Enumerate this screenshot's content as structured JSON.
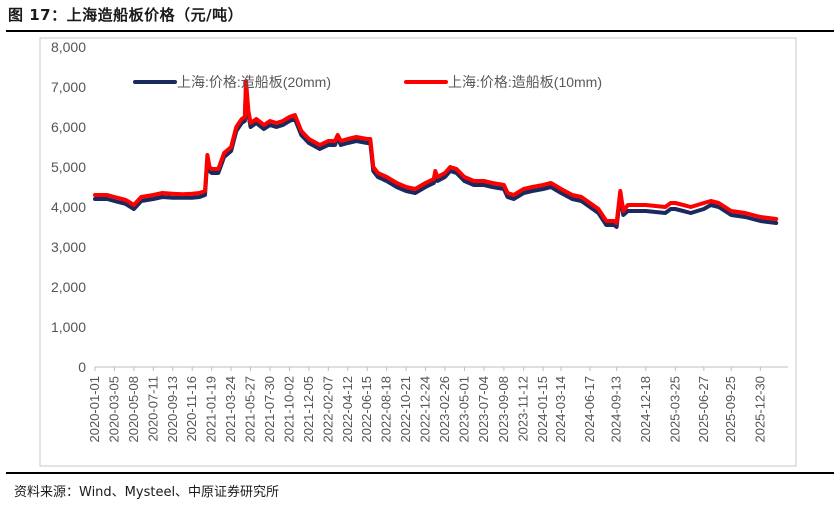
{
  "figure": {
    "title": "图 17：上海造船板价格（元/吨）",
    "source": "资料来源：Wind、Mysteel、中原证券研究所"
  },
  "chart_data": {
    "type": "line",
    "ylim": [
      0,
      8000
    ],
    "yticks": [
      0,
      1000,
      2000,
      3000,
      4000,
      5000,
      6000,
      7000,
      8000
    ],
    "ytick_labels": [
      "0",
      "1,000",
      "2,000",
      "3,000",
      "4,000",
      "5,000",
      "6,000",
      "7,000",
      "8,000"
    ],
    "xlim": [
      "2020-01-01",
      "2026-03-31"
    ],
    "xticks": [
      "2020-01-01",
      "2020-03-05",
      "2020-05-08",
      "2020-07-11",
      "2020-09-13",
      "2020-11-16",
      "2021-01-19",
      "2021-03-24",
      "2021-05-27",
      "2021-07-30",
      "2021-10-02",
      "2021-12-05",
      "2022-02-07",
      "2022-04-12",
      "2022-06-15",
      "2022-08-18",
      "2022-10-21",
      "2022-12-24",
      "2023-02-26",
      "2023-05-01",
      "2023-07-04",
      "2023-09-08",
      "2023-11-12",
      "2024-01-15",
      "2024-03-14",
      "2024-06-17",
      "2024-09-13",
      "2024-12-18",
      "2025-03-25",
      "2025-06-27",
      "2025-09-25",
      "2025-12-30"
    ],
    "legend_position": "top",
    "grid": false,
    "colors": {
      "20mm": "#1a2a5e",
      "10mm": "#ff0000"
    },
    "series": [
      {
        "name": "上海:价格:造船板(20mm)",
        "points": [
          [
            "2020-01-01",
            4200
          ],
          [
            "2020-02-10",
            4200
          ],
          [
            "2020-03-05",
            4150
          ],
          [
            "2020-04-10",
            4080
          ],
          [
            "2020-05-08",
            3950
          ],
          [
            "2020-06-01",
            4150
          ],
          [
            "2020-07-11",
            4200
          ],
          [
            "2020-08-10",
            4250
          ],
          [
            "2020-09-13",
            4230
          ],
          [
            "2020-10-15",
            4230
          ],
          [
            "2020-11-16",
            4230
          ],
          [
            "2020-12-10",
            4250
          ],
          [
            "2020-12-28",
            4300
          ],
          [
            "2021-01-05",
            5200
          ],
          [
            "2021-01-12",
            4900
          ],
          [
            "2021-01-19",
            4850
          ],
          [
            "2021-02-10",
            4850
          ],
          [
            "2021-03-01",
            5250
          ],
          [
            "2021-03-24",
            5400
          ],
          [
            "2021-04-10",
            5900
          ],
          [
            "2021-04-28",
            6100
          ],
          [
            "2021-05-08",
            6150
          ],
          [
            "2021-05-12",
            7050
          ],
          [
            "2021-05-20",
            6300
          ],
          [
            "2021-05-27",
            6000
          ],
          [
            "2021-06-15",
            6100
          ],
          [
            "2021-07-10",
            5950
          ],
          [
            "2021-07-30",
            6050
          ],
          [
            "2021-08-20",
            6000
          ],
          [
            "2021-09-10",
            6050
          ],
          [
            "2021-10-02",
            6150
          ],
          [
            "2021-10-20",
            6200
          ],
          [
            "2021-11-10",
            5800
          ],
          [
            "2021-12-05",
            5600
          ],
          [
            "2022-01-10",
            5450
          ],
          [
            "2022-02-07",
            5550
          ],
          [
            "2022-03-01",
            5550
          ],
          [
            "2022-03-10",
            5750
          ],
          [
            "2022-03-20",
            5550
          ],
          [
            "2022-04-12",
            5600
          ],
          [
            "2022-05-10",
            5650
          ],
          [
            "2022-06-15",
            5600
          ],
          [
            "2022-06-25",
            5600
          ],
          [
            "2022-07-05",
            4900
          ],
          [
            "2022-07-20",
            4750
          ],
          [
            "2022-08-18",
            4650
          ],
          [
            "2022-09-20",
            4500
          ],
          [
            "2022-10-21",
            4400
          ],
          [
            "2022-11-20",
            4350
          ],
          [
            "2022-12-24",
            4500
          ],
          [
            "2023-01-20",
            4600
          ],
          [
            "2023-01-25",
            4800
          ],
          [
            "2023-02-01",
            4650
          ],
          [
            "2023-02-26",
            4750
          ],
          [
            "2023-03-15",
            4900
          ],
          [
            "2023-04-05",
            4850
          ],
          [
            "2023-05-01",
            4650
          ],
          [
            "2023-06-01",
            4550
          ],
          [
            "2023-07-04",
            4550
          ],
          [
            "2023-08-01",
            4500
          ],
          [
            "2023-09-08",
            4450
          ],
          [
            "2023-09-20",
            4250
          ],
          [
            "2023-10-10",
            4200
          ],
          [
            "2023-11-12",
            4350
          ],
          [
            "2023-12-10",
            4400
          ],
          [
            "2024-01-15",
            4450
          ],
          [
            "2024-02-10",
            4500
          ],
          [
            "2024-03-14",
            4350
          ],
          [
            "2024-04-20",
            4200
          ],
          [
            "2024-05-20",
            4150
          ],
          [
            "2024-06-17",
            4000
          ],
          [
            "2024-07-15",
            3850
          ],
          [
            "2024-08-10",
            3550
          ],
          [
            "2024-09-05",
            3550
          ],
          [
            "2024-09-13",
            3500
          ],
          [
            "2024-09-25",
            4300
          ],
          [
            "2024-10-05",
            3800
          ],
          [
            "2024-10-20",
            3900
          ],
          [
            "2024-12-18",
            3900
          ],
          [
            "2025-02-20",
            3850
          ],
          [
            "2025-03-10",
            3950
          ],
          [
            "2025-03-25",
            3950
          ],
          [
            "2025-04-20",
            3900
          ],
          [
            "2025-05-15",
            3850
          ],
          [
            "2025-06-27",
            3950
          ],
          [
            "2025-07-20",
            4050
          ],
          [
            "2025-08-15",
            4000
          ],
          [
            "2025-09-25",
            3800
          ],
          [
            "2025-11-10",
            3750
          ],
          [
            "2025-12-30",
            3650
          ],
          [
            "2026-02-20",
            3600
          ]
        ]
      },
      {
        "name": "上海:价格:造船板(10mm)",
        "points": [
          [
            "2020-01-01",
            4300
          ],
          [
            "2020-02-10",
            4300
          ],
          [
            "2020-03-05",
            4250
          ],
          [
            "2020-04-10",
            4180
          ],
          [
            "2020-05-08",
            4050
          ],
          [
            "2020-06-01",
            4250
          ],
          [
            "2020-07-11",
            4300
          ],
          [
            "2020-08-10",
            4350
          ],
          [
            "2020-09-13",
            4330
          ],
          [
            "2020-10-15",
            4320
          ],
          [
            "2020-11-16",
            4330
          ],
          [
            "2020-12-10",
            4350
          ],
          [
            "2020-12-28",
            4400
          ],
          [
            "2021-01-05",
            5300
          ],
          [
            "2021-01-12",
            5000
          ],
          [
            "2021-01-19",
            4950
          ],
          [
            "2021-02-10",
            4950
          ],
          [
            "2021-03-01",
            5350
          ],
          [
            "2021-03-24",
            5500
          ],
          [
            "2021-04-10",
            6000
          ],
          [
            "2021-04-28",
            6200
          ],
          [
            "2021-05-08",
            6250
          ],
          [
            "2021-05-12",
            7150
          ],
          [
            "2021-05-20",
            6400
          ],
          [
            "2021-05-27",
            6100
          ],
          [
            "2021-06-15",
            6200
          ],
          [
            "2021-07-10",
            6050
          ],
          [
            "2021-07-30",
            6150
          ],
          [
            "2021-08-20",
            6100
          ],
          [
            "2021-09-10",
            6150
          ],
          [
            "2021-10-02",
            6250
          ],
          [
            "2021-10-20",
            6300
          ],
          [
            "2021-11-10",
            5900
          ],
          [
            "2021-12-05",
            5700
          ],
          [
            "2022-01-10",
            5550
          ],
          [
            "2022-02-07",
            5650
          ],
          [
            "2022-03-01",
            5650
          ],
          [
            "2022-03-10",
            5800
          ],
          [
            "2022-03-20",
            5650
          ],
          [
            "2022-04-12",
            5700
          ],
          [
            "2022-05-10",
            5750
          ],
          [
            "2022-06-15",
            5700
          ],
          [
            "2022-06-25",
            5700
          ],
          [
            "2022-07-05",
            5000
          ],
          [
            "2022-07-20",
            4850
          ],
          [
            "2022-08-18",
            4750
          ],
          [
            "2022-09-20",
            4600
          ],
          [
            "2022-10-21",
            4500
          ],
          [
            "2022-11-20",
            4450
          ],
          [
            "2022-12-24",
            4600
          ],
          [
            "2023-01-20",
            4700
          ],
          [
            "2023-01-25",
            4900
          ],
          [
            "2023-02-01",
            4750
          ],
          [
            "2023-02-26",
            4850
          ],
          [
            "2023-03-15",
            5000
          ],
          [
            "2023-04-05",
            4950
          ],
          [
            "2023-05-01",
            4750
          ],
          [
            "2023-06-01",
            4650
          ],
          [
            "2023-07-04",
            4650
          ],
          [
            "2023-08-01",
            4600
          ],
          [
            "2023-09-08",
            4550
          ],
          [
            "2023-09-20",
            4350
          ],
          [
            "2023-10-10",
            4300
          ],
          [
            "2023-11-12",
            4450
          ],
          [
            "2023-12-10",
            4500
          ],
          [
            "2024-01-15",
            4550
          ],
          [
            "2024-02-10",
            4600
          ],
          [
            "2024-03-14",
            4450
          ],
          [
            "2024-04-20",
            4300
          ],
          [
            "2024-05-20",
            4250
          ],
          [
            "2024-06-17",
            4100
          ],
          [
            "2024-07-15",
            3950
          ],
          [
            "2024-08-10",
            3650
          ],
          [
            "2024-09-05",
            3650
          ],
          [
            "2024-09-13",
            3600
          ],
          [
            "2024-09-25",
            4400
          ],
          [
            "2024-10-05",
            3900
          ],
          [
            "2024-10-20",
            4050
          ],
          [
            "2024-12-18",
            4050
          ],
          [
            "2025-02-20",
            4000
          ],
          [
            "2025-03-10",
            4100
          ],
          [
            "2025-03-25",
            4100
          ],
          [
            "2025-04-20",
            4050
          ],
          [
            "2025-05-15",
            4000
          ],
          [
            "2025-06-27",
            4100
          ],
          [
            "2025-07-20",
            4150
          ],
          [
            "2025-08-15",
            4100
          ],
          [
            "2025-09-25",
            3900
          ],
          [
            "2025-11-10",
            3850
          ],
          [
            "2025-12-30",
            3750
          ],
          [
            "2026-02-20",
            3700
          ]
        ]
      }
    ]
  }
}
